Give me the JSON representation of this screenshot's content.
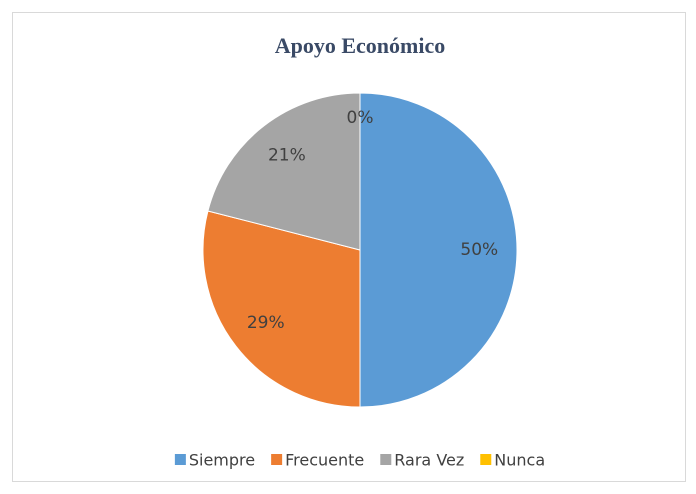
{
  "chart_data": {
    "type": "pie",
    "title": "Apoyo Económico",
    "categories": [
      "Siempre",
      "Frecuente",
      "Rara Vez",
      "Nunca"
    ],
    "values": [
      50,
      29,
      21,
      0
    ],
    "value_labels": [
      "50%",
      "29%",
      "21%",
      "0%"
    ],
    "colors": [
      "#5b9bd5",
      "#ed7d31",
      "#a5a5a5",
      "#ffc000"
    ],
    "legend": "bottom"
  }
}
